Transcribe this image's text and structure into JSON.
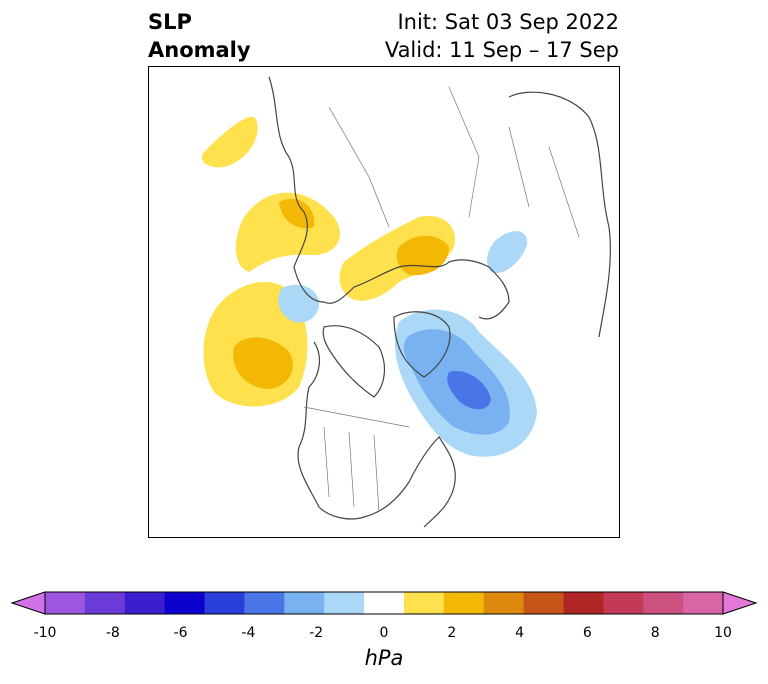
{
  "title": {
    "variable_line1": "SLP",
    "variable_line2": "Anomaly",
    "init": "Init: Sat 03 Sep 2022",
    "valid": "Valid: 11 Sep – 17 Sep"
  },
  "map": {
    "region": "Northern Hemisphere polar stereographic",
    "anomalies": [
      {
        "name": "North Pacific high",
        "sign": "positive",
        "max_hpa": 2
      },
      {
        "name": "Alaska / Bering high",
        "sign": "positive",
        "max_hpa": 1
      },
      {
        "name": "Kara Sea high",
        "sign": "positive",
        "max_hpa": 2
      },
      {
        "name": "Labrador / Baffin low",
        "sign": "negative",
        "min_hpa": -5
      },
      {
        "name": "Scandinavia low",
        "sign": "negative",
        "min_hpa": -1
      },
      {
        "name": "Beaufort low",
        "sign": "negative",
        "min_hpa": -1
      }
    ]
  },
  "colorbar": {
    "unit": "hPa",
    "tick_labels": [
      "-10",
      "-8",
      "-6",
      "-4",
      "-2",
      "0",
      "2",
      "4",
      "6",
      "8",
      "10"
    ],
    "colors": [
      "#d372e6",
      "#9c56e0",
      "#6b3bd8",
      "#3a1fd0",
      "#0b00cc",
      "#2a3fd9",
      "#4a75e6",
      "#78b2f0",
      "#abd8f7",
      "#ffffff",
      "#ffe04d",
      "#f2b805",
      "#de8a0e",
      "#c85518",
      "#b02525",
      "#c23a55",
      "#cc5080",
      "#d865a6",
      "#e478d8"
    ],
    "extend": "both"
  }
}
